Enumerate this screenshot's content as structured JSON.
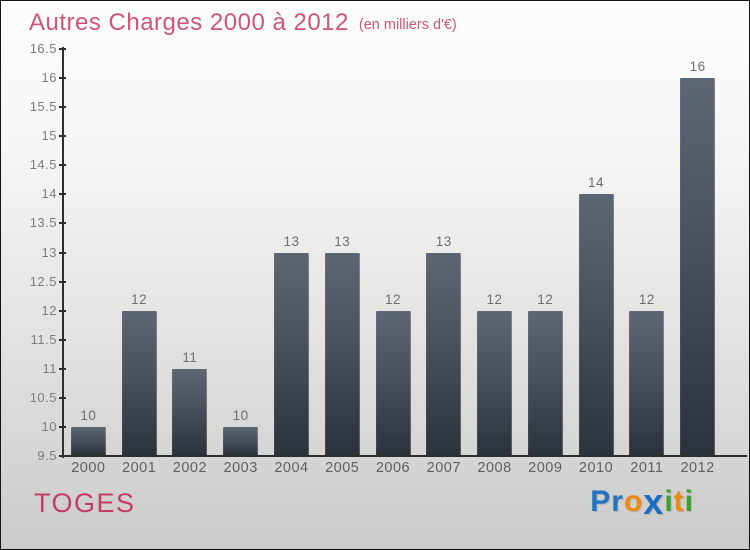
{
  "header": {
    "title": "Autres Charges 2000 à 2012",
    "subtitle": "(en milliers d'€)"
  },
  "chart_data": {
    "type": "bar",
    "title": "Autres Charges 2000 à 2012",
    "subtitle": "(en milliers d'€)",
    "categories": [
      "2000",
      "2001",
      "2002",
      "2003",
      "2004",
      "2005",
      "2006",
      "2007",
      "2008",
      "2009",
      "2010",
      "2011",
      "2012"
    ],
    "values": [
      10,
      12,
      11,
      10,
      13,
      13,
      12,
      13,
      12,
      12,
      14,
      12,
      16
    ],
    "xlabel": "",
    "ylabel": "",
    "ylim": [
      9.5,
      16.5
    ],
    "ytick_step": 0.5,
    "grid": false,
    "legend": "none",
    "bar_color_top": "#5d6673",
    "bar_color_bottom": "#2b323c",
    "axis_color": "#2e2e2e",
    "label_color": "#6e6e6e"
  },
  "footer": {
    "company": "TOGES",
    "logo_letters": [
      {
        "ch": "P",
        "color": "#2273c4",
        "big": false
      },
      {
        "ch": "r",
        "color": "#2273c4",
        "big": false
      },
      {
        "ch": "o",
        "color": "#ee8a10",
        "big": false
      },
      {
        "ch": "x",
        "color": "#1d6ec2",
        "big": true
      },
      {
        "ch": "i",
        "color": "#3aa02f",
        "big": false
      },
      {
        "ch": "t",
        "color": "#ee8a10",
        "big": false
      },
      {
        "ch": "i",
        "color": "#3aa02f",
        "big": false
      }
    ]
  },
  "colors": {
    "title_pink": "#d15576",
    "company_pink": "#c33d64",
    "background_top": "#fdfdfd",
    "background_bottom": "#cbcbca"
  }
}
